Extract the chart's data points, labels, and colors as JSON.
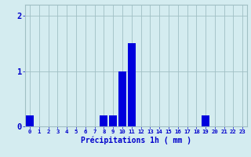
{
  "hours": [
    0,
    1,
    2,
    3,
    4,
    5,
    6,
    7,
    8,
    9,
    10,
    11,
    12,
    13,
    14,
    15,
    16,
    17,
    18,
    19,
    20,
    21,
    22,
    23
  ],
  "values": [
    0.2,
    0,
    0,
    0,
    0,
    0,
    0,
    0,
    0.2,
    0.2,
    1.0,
    1.5,
    0,
    0,
    0,
    0,
    0,
    0,
    0,
    0.2,
    0,
    0,
    0,
    0
  ],
  "bar_color": "#0000dd",
  "background_color": "#d4ecf0",
  "grid_color": "#a0bfc4",
  "xlabel": "Précipitations 1h ( mm )",
  "xlabel_color": "#0000cc",
  "tick_color": "#0000cc",
  "ylim": [
    0,
    2.2
  ],
  "yticks": [
    0,
    1,
    2
  ],
  "bar_width": 0.85,
  "figwidth": 3.2,
  "figheight": 2.0,
  "dpi": 100
}
